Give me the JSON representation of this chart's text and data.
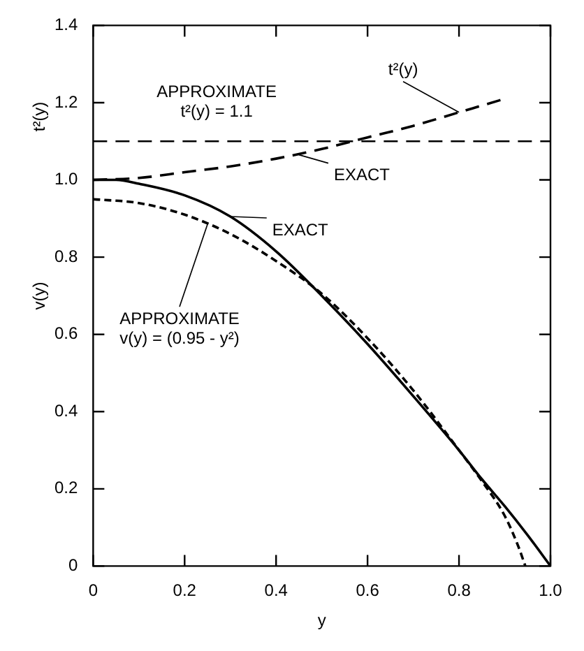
{
  "chart_data": {
    "type": "line",
    "xlabel": "y",
    "ylabel": "v(y)",
    "xlim": [
      0,
      1.0
    ],
    "ylim": [
      0,
      1.4
    ],
    "xticks": [
      0,
      0.2,
      0.4,
      0.6,
      0.8,
      {
        "value": 1.0,
        "label": "1.0"
      }
    ],
    "yticks": [
      0,
      0.2,
      0.4,
      0.6,
      0.8,
      {
        "value": 1.0,
        "label": "1.0"
      },
      1.2,
      1.4
    ],
    "marker": "none",
    "series": [
      {
        "color": "#000000",
        "line_style": "dashed",
        "x": [
          0,
          0.1,
          0.2,
          0.3,
          0.4,
          0.5,
          0.6,
          0.7,
          0.8,
          0.9
        ],
        "values": [
          1.0,
          1.005,
          1.02,
          1.035,
          1.055,
          1.08,
          1.11,
          1.14,
          1.175,
          1.21
        ]
      },
      {
        "color": "#000000",
        "line_style": "solid",
        "x": [
          0,
          0.05,
          0.1,
          0.2,
          0.3,
          0.4,
          0.5,
          0.6,
          0.7,
          0.8,
          0.85,
          0.9,
          0.95,
          1.0
        ],
        "values": [
          1.0,
          1.0,
          0.99,
          0.96,
          0.905,
          0.815,
          0.7,
          0.575,
          0.44,
          0.3,
          0.225,
          0.155,
          0.08,
          0
        ]
      },
      {
        "color": "#000000",
        "line_style": "dotted",
        "x": [
          0,
          0.1,
          0.2,
          0.3,
          0.4,
          0.5,
          0.6,
          0.7,
          0.8,
          0.85,
          0.9,
          0.93,
          0.945
        ],
        "values": [
          0.95,
          0.94,
          0.91,
          0.86,
          0.79,
          0.705,
          0.59,
          0.455,
          0.3,
          0.22,
          0.13,
          0.05,
          0
        ]
      }
    ],
    "ref_lines": [
      {
        "axis": "y",
        "value": 1.1,
        "label": "APPROXIMATE\nt²(y) = 1.1",
        "line_style": "dashed",
        "color": "#000000"
      }
    ],
    "annotations": [
      "t²(y)",
      {
        "text": "t²(y)",
        "x": 0.8,
        "y": 1.175
      },
      {
        "text": "EXACT",
        "x": 0.45,
        "y": 1.065
      },
      {
        "text": "EXACT",
        "x": 0.3,
        "y": 0.905
      },
      {
        "text": "APPROXIMATE\nv(y) = (0.95 - y²)",
        "x": 0.25,
        "y": 0.885
      }
    ]
  }
}
